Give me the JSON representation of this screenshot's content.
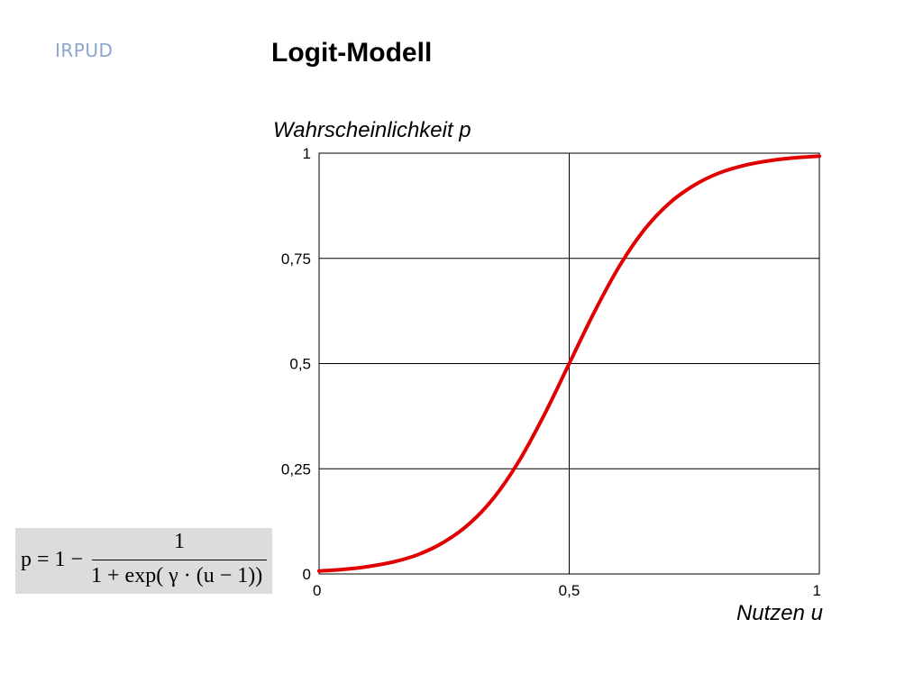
{
  "header": {
    "logo": "IRPUD",
    "title": "Logit-Modell"
  },
  "formula": {
    "lhs": "p = 1 −",
    "numerator": "1",
    "denominator": "1 + exp( γ · (u − 1))"
  },
  "chart_data": {
    "type": "line",
    "ylabel": "Wahrscheinlichkeit p",
    "xlabel": "Nutzen u",
    "xlim": [
      0,
      1
    ],
    "ylim": [
      0,
      1
    ],
    "x_ticks": [
      0,
      0.5,
      1
    ],
    "x_tick_labels": [
      "0",
      "0,5",
      "1"
    ],
    "y_ticks": [
      0,
      0.25,
      0.5,
      0.75,
      1
    ],
    "y_tick_labels": [
      "0",
      "0,25",
      "0,5",
      "0,75",
      "1"
    ],
    "grid": true,
    "colors": {
      "curve": "#e00000",
      "grid": "#000000"
    },
    "series": [
      {
        "x": [
          0,
          0.05,
          0.1,
          0.15,
          0.2,
          0.25,
          0.3,
          0.35,
          0.4,
          0.45,
          0.5,
          0.55,
          0.6,
          0.65,
          0.7,
          0.75,
          0.8,
          0.85,
          0.9,
          0.95,
          1
        ],
        "values": [
          0.007,
          0.011,
          0.018,
          0.029,
          0.047,
          0.076,
          0.119,
          0.182,
          0.269,
          0.378,
          0.5,
          0.622,
          0.731,
          0.818,
          0.881,
          0.924,
          0.953,
          0.971,
          0.982,
          0.989,
          0.993
        ]
      }
    ]
  }
}
